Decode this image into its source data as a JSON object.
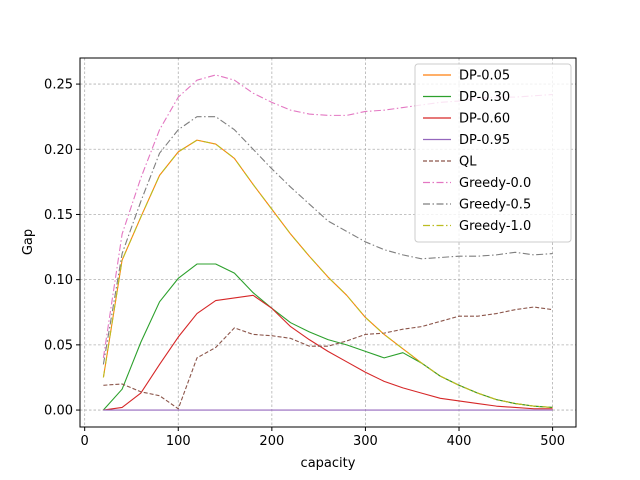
{
  "chart_data": {
    "type": "line",
    "title": "",
    "xlabel": "capacity",
    "ylabel": "Gap",
    "xlim": [
      -5,
      525
    ],
    "ylim": [
      -0.013,
      0.27
    ],
    "xticks": [
      0,
      100,
      200,
      300,
      400,
      500
    ],
    "yticks": [
      0.0,
      0.05,
      0.1,
      0.15,
      0.2,
      0.25
    ],
    "grid": true,
    "legend_position": "top-right",
    "series": [
      {
        "name": "DP-0.05",
        "color": "#ff7f0e",
        "style": "solid",
        "x": [
          20,
          40,
          60,
          80,
          100,
          120,
          140,
          160,
          180,
          200,
          220,
          240,
          260,
          280,
          300,
          320,
          340,
          360,
          380,
          400,
          420,
          440,
          460,
          480,
          500
        ],
        "y": [
          0.025,
          0.115,
          0.148,
          0.18,
          0.198,
          0.207,
          0.204,
          0.193,
          0.173,
          0.154,
          0.135,
          0.118,
          0.102,
          0.088,
          0.071,
          0.058,
          0.047,
          0.036,
          0.026,
          0.019,
          0.013,
          0.008,
          0.005,
          0.003,
          0.002
        ]
      },
      {
        "name": "DP-0.30",
        "color": "#2ca02c",
        "style": "solid",
        "x": [
          20,
          40,
          60,
          80,
          100,
          120,
          140,
          160,
          180,
          200,
          220,
          240,
          260,
          280,
          300,
          320,
          340,
          360,
          380,
          400,
          420,
          440,
          460,
          480,
          500
        ],
        "y": [
          0.0,
          0.016,
          0.052,
          0.083,
          0.101,
          0.112,
          0.112,
          0.105,
          0.09,
          0.078,
          0.067,
          0.06,
          0.054,
          0.05,
          0.045,
          0.04,
          0.044,
          0.036,
          0.026,
          0.019,
          0.013,
          0.008,
          0.005,
          0.003,
          0.002
        ]
      },
      {
        "name": "DP-0.60",
        "color": "#d62728",
        "style": "solid",
        "x": [
          20,
          40,
          60,
          80,
          100,
          120,
          140,
          160,
          180,
          200,
          220,
          240,
          260,
          280,
          300,
          320,
          340,
          360,
          380,
          400,
          420,
          440,
          460,
          480,
          500
        ],
        "y": [
          0.0,
          0.002,
          0.013,
          0.035,
          0.056,
          0.074,
          0.084,
          0.086,
          0.088,
          0.078,
          0.064,
          0.054,
          0.045,
          0.037,
          0.029,
          0.022,
          0.017,
          0.013,
          0.009,
          0.007,
          0.005,
          0.003,
          0.002,
          0.001,
          0.001
        ]
      },
      {
        "name": "DP-0.95",
        "color": "#9467bd",
        "style": "solid",
        "x": [
          20,
          40,
          60,
          80,
          100,
          120,
          140,
          160,
          180,
          200,
          220,
          240,
          260,
          280,
          300,
          320,
          340,
          360,
          380,
          400,
          420,
          440,
          460,
          480,
          500
        ],
        "y": [
          0,
          0,
          0,
          0,
          0,
          0,
          0,
          0,
          0,
          0,
          0,
          0,
          0,
          0,
          0,
          0,
          0,
          0,
          0,
          0,
          0,
          0,
          0,
          0,
          0
        ]
      },
      {
        "name": "QL",
        "color": "#8c564b",
        "style": "dashed",
        "x": [
          20,
          40,
          60,
          80,
          100,
          120,
          140,
          160,
          180,
          200,
          220,
          240,
          260,
          280,
          300,
          320,
          340,
          360,
          380,
          400,
          420,
          440,
          460,
          480,
          500
        ],
        "y": [
          0.019,
          0.02,
          0.014,
          0.011,
          0.001,
          0.04,
          0.048,
          0.063,
          0.058,
          0.057,
          0.055,
          0.049,
          0.049,
          0.053,
          0.058,
          0.059,
          0.062,
          0.064,
          0.068,
          0.072,
          0.072,
          0.074,
          0.077,
          0.079,
          0.077
        ]
      },
      {
        "name": "Greedy-0.0",
        "color": "#e377c2",
        "style": "dashdot",
        "x": [
          20,
          40,
          60,
          80,
          100,
          120,
          140,
          160,
          180,
          200,
          220,
          240,
          260,
          280,
          300,
          320,
          340,
          360,
          380,
          400,
          420,
          440,
          460,
          480,
          500
        ],
        "y": [
          0.04,
          0.135,
          0.178,
          0.215,
          0.24,
          0.253,
          0.257,
          0.253,
          0.243,
          0.236,
          0.23,
          0.227,
          0.226,
          0.226,
          0.229,
          0.23,
          0.232,
          0.234,
          0.236,
          0.237,
          0.239,
          0.24,
          0.24,
          0.241,
          0.242
        ]
      },
      {
        "name": "Greedy-0.5",
        "color": "#7f7f7f",
        "style": "dashdot",
        "x": [
          20,
          40,
          60,
          80,
          100,
          120,
          140,
          160,
          180,
          200,
          220,
          240,
          260,
          280,
          300,
          320,
          340,
          360,
          380,
          400,
          420,
          440,
          460,
          480,
          500
        ],
        "y": [
          0.035,
          0.12,
          0.16,
          0.197,
          0.215,
          0.225,
          0.225,
          0.215,
          0.2,
          0.185,
          0.171,
          0.158,
          0.145,
          0.137,
          0.129,
          0.123,
          0.119,
          0.116,
          0.117,
          0.118,
          0.118,
          0.119,
          0.121,
          0.119,
          0.12
        ]
      },
      {
        "name": "Greedy-1.0",
        "color": "#bcbd22",
        "style": "dashdot",
        "x": [
          20,
          40,
          60,
          80,
          100,
          120,
          140,
          160,
          180,
          200,
          220,
          240,
          260,
          280,
          300,
          320,
          340,
          360,
          380,
          400,
          420,
          440,
          460,
          480,
          500
        ],
        "y": [
          0.025,
          0.115,
          0.148,
          0.18,
          0.198,
          0.207,
          0.204,
          0.193,
          0.173,
          0.154,
          0.135,
          0.118,
          0.102,
          0.088,
          0.071,
          0.058,
          0.047,
          0.036,
          0.026,
          0.019,
          0.013,
          0.008,
          0.005,
          0.003,
          0.002
        ]
      }
    ]
  }
}
